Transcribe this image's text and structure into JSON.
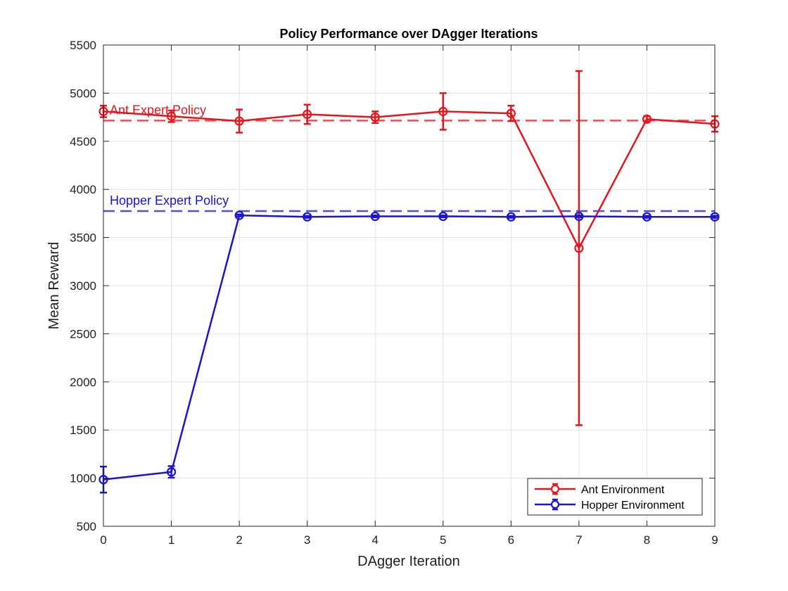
{
  "chart_data": {
    "type": "line",
    "title": "Policy Performance over DAgger Iterations",
    "xlabel": "DAgger Iteration",
    "ylabel": "Mean Reward",
    "xlim": [
      0,
      9
    ],
    "ylim": [
      500,
      5500
    ],
    "x_ticks": [
      "0",
      "1",
      "2",
      "3",
      "4",
      "5",
      "6",
      "7",
      "8",
      "9"
    ],
    "y_ticks": [
      "500",
      "1000",
      "1500",
      "2000",
      "2500",
      "3000",
      "3500",
      "4000",
      "4500",
      "5000",
      "5500"
    ],
    "grid": true,
    "legend_position": "bottom-right",
    "x": [
      0,
      1,
      2,
      3,
      4,
      5,
      6,
      7,
      8,
      9
    ],
    "series": [
      {
        "name": "Ant Environment",
        "color": "#e8141b",
        "marker": "circle",
        "values": [
          4810,
          4760,
          4710,
          4780,
          4750,
          4810,
          4790,
          3390,
          4730,
          4680
        ],
        "errors": [
          60,
          60,
          120,
          100,
          60,
          190,
          80,
          1840,
          30,
          80
        ]
      },
      {
        "name": "Hopper Environment",
        "color": "#1a14d4",
        "marker": "circle",
        "values": [
          985,
          1065,
          3730,
          3715,
          3720,
          3720,
          3715,
          3720,
          3715,
          3715
        ],
        "errors": [
          135,
          60,
          10,
          10,
          10,
          10,
          10,
          10,
          10,
          10
        ]
      }
    ],
    "reference_lines": [
      {
        "label": "Ant Expert Policy",
        "value": 4715,
        "color": "#e8141b"
      },
      {
        "label": "Hopper Expert Policy",
        "value": 3775,
        "color": "#1a14d4"
      }
    ]
  }
}
